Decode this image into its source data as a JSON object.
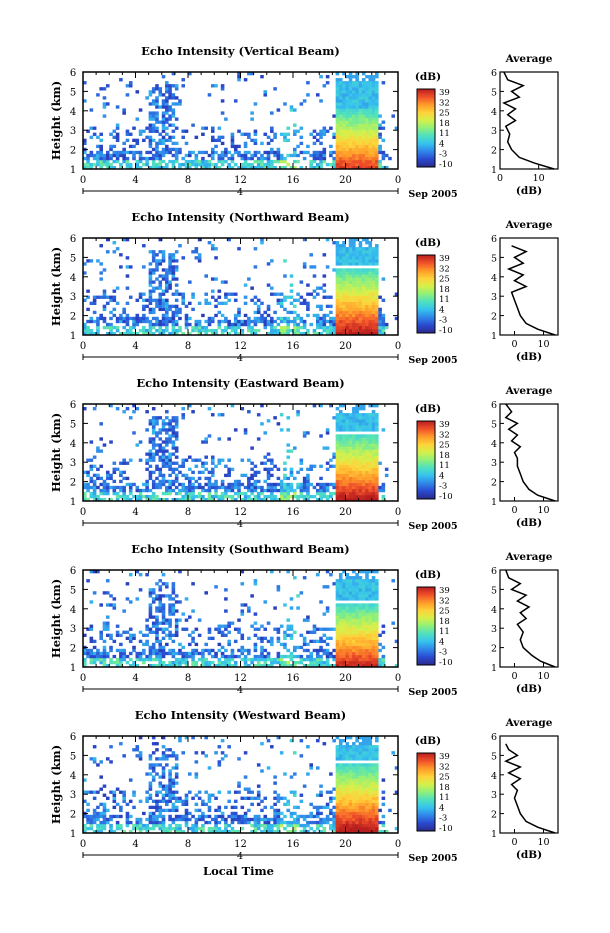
{
  "figure": {
    "date_label": "Sep 2005",
    "xaxis_title": "Local Time",
    "day_marker": "4"
  },
  "colorbar": {
    "unit": "(dB)",
    "ticks": [
      "39",
      "32",
      "25",
      "18",
      "11",
      "4",
      "-3",
      "-10"
    ],
    "colors": [
      "#2b2a8a",
      "#2a4ad0",
      "#2f86e8",
      "#36c2ee",
      "#4fe0c0",
      "#8ff07a",
      "#d6f04a",
      "#ffd23a",
      "#ff9a2a",
      "#f0502a",
      "#b81e1e"
    ]
  },
  "chart_data": [
    {
      "type": "heatmap",
      "title": "Echo Intensity (Vertical Beam)",
      "xlabel": "",
      "ylabel": "Height (km)",
      "xlim": [
        0,
        24
      ],
      "ylim": [
        1,
        6
      ],
      "xticks": [
        "0",
        "4",
        "8",
        "12",
        "16",
        "20",
        "0"
      ],
      "yticks": [
        "1",
        "2",
        "3",
        "4",
        "5",
        "6"
      ],
      "bright_layer_km": 4.2,
      "profile": {
        "title": "Average",
        "xlabel": "(dB)",
        "xlim": [
          0,
          15
        ],
        "xticks": [
          "0",
          "10"
        ],
        "yticks": [
          "1",
          "2",
          "3",
          "4",
          "5",
          "6"
        ],
        "height_km": [
          1.0,
          1.3,
          1.6,
          2.0,
          2.4,
          2.8,
          3.2,
          3.5,
          3.8,
          4.1,
          4.4,
          4.7,
          5.0,
          5.3,
          5.6,
          6.0
        ],
        "db": [
          14,
          9,
          5,
          3,
          2,
          2.5,
          1.5,
          4,
          2,
          4,
          1,
          5,
          3,
          6,
          2,
          1
        ]
      }
    },
    {
      "type": "heatmap",
      "title": "Echo Intensity (Northward Beam)",
      "xlabel": "",
      "ylabel": "Height (km)",
      "xlim": [
        0,
        24
      ],
      "ylim": [
        1,
        6
      ],
      "xticks": [
        "0",
        "4",
        "8",
        "12",
        "16",
        "20",
        "0"
      ],
      "yticks": [
        "1",
        "2",
        "3",
        "4",
        "5",
        "6"
      ],
      "bright_layer_km": 4.6,
      "profile": {
        "title": "Average",
        "xlabel": "(dB)",
        "xlim": [
          -5,
          15
        ],
        "xticks": [
          "0",
          "10"
        ],
        "yticks": [
          "1",
          "2",
          "3",
          "4",
          "5",
          "6"
        ],
        "height_km": [
          1.0,
          1.3,
          1.6,
          2.0,
          2.4,
          2.8,
          3.2,
          3.5,
          3.8,
          4.1,
          4.4,
          4.7,
          5.0,
          5.3,
          5.6
        ],
        "db": [
          14,
          8,
          4,
          2,
          1,
          0,
          -1,
          4,
          0,
          3,
          -2,
          3,
          0,
          4,
          -1
        ]
      }
    },
    {
      "type": "heatmap",
      "title": "Echo Intensity (Eastward Beam)",
      "xlabel": "",
      "ylabel": "Height (km)",
      "xlim": [
        0,
        24
      ],
      "ylim": [
        1,
        6
      ],
      "xticks": [
        "0",
        "4",
        "8",
        "12",
        "16",
        "20",
        "0"
      ],
      "yticks": [
        "1",
        "2",
        "3",
        "4",
        "5",
        "6"
      ],
      "bright_layer_km": 4.6,
      "profile": {
        "title": "Average",
        "xlabel": "(dB)",
        "xlim": [
          -5,
          15
        ],
        "xticks": [
          "0",
          "10"
        ],
        "yticks": [
          "1",
          "2",
          "3",
          "4",
          "5",
          "6"
        ],
        "height_km": [
          1.0,
          1.3,
          1.6,
          2.0,
          2.4,
          2.8,
          3.2,
          3.5,
          3.8,
          4.1,
          4.4,
          4.7,
          5.0,
          5.3,
          5.6,
          6.0
        ],
        "db": [
          14,
          8,
          5,
          3,
          2,
          1,
          1,
          0,
          2,
          -1,
          1,
          -2,
          1,
          -3,
          -1,
          -3
        ]
      }
    },
    {
      "type": "heatmap",
      "title": "Echo Intensity (Southward Beam)",
      "xlabel": "",
      "ylabel": "Height (km)",
      "xlim": [
        0,
        24
      ],
      "ylim": [
        1,
        6
      ],
      "xticks": [
        "0",
        "4",
        "8",
        "12",
        "16",
        "20",
        "0"
      ],
      "yticks": [
        "1",
        "2",
        "3",
        "4",
        "5",
        "6"
      ],
      "bright_layer_km": 4.4,
      "profile": {
        "title": "Average",
        "xlabel": "(dB)",
        "xlim": [
          -5,
          15
        ],
        "xticks": [
          "0",
          "10"
        ],
        "yticks": [
          "1",
          "2",
          "3",
          "4",
          "5",
          "6"
        ],
        "height_km": [
          1.0,
          1.3,
          1.6,
          2.0,
          2.4,
          2.8,
          3.2,
          3.5,
          3.8,
          4.1,
          4.4,
          4.7,
          5.0,
          5.3,
          5.6,
          6.0
        ],
        "db": [
          14,
          9,
          6,
          3,
          2,
          3,
          1,
          4,
          2,
          5,
          1,
          4,
          -1,
          2,
          -2,
          -3
        ]
      }
    },
    {
      "type": "heatmap",
      "title": "Echo Intensity (Westward Beam)",
      "xlabel": "Local Time",
      "ylabel": "Height (km)",
      "xlim": [
        0,
        24
      ],
      "ylim": [
        1,
        6
      ],
      "xticks": [
        "0",
        "4",
        "8",
        "12",
        "16",
        "20",
        "0"
      ],
      "yticks": [
        "1",
        "2",
        "3",
        "4",
        "5",
        "6"
      ],
      "bright_layer_km": 4.7,
      "profile": {
        "title": "Average",
        "xlabel": "(dB)",
        "xlim": [
          -5,
          15
        ],
        "xticks": [
          "0",
          "10"
        ],
        "yticks": [
          "1",
          "2",
          "3",
          "4",
          "5",
          "6"
        ],
        "height_km": [
          1.0,
          1.3,
          1.6,
          2.0,
          2.4,
          2.8,
          3.2,
          3.5,
          3.8,
          4.1,
          4.4,
          4.7,
          5.0,
          5.3,
          5.6
        ],
        "db": [
          14,
          8,
          4,
          2,
          1,
          0,
          1,
          -1,
          2,
          -2,
          2,
          -3,
          1,
          -2,
          -3
        ]
      }
    }
  ]
}
